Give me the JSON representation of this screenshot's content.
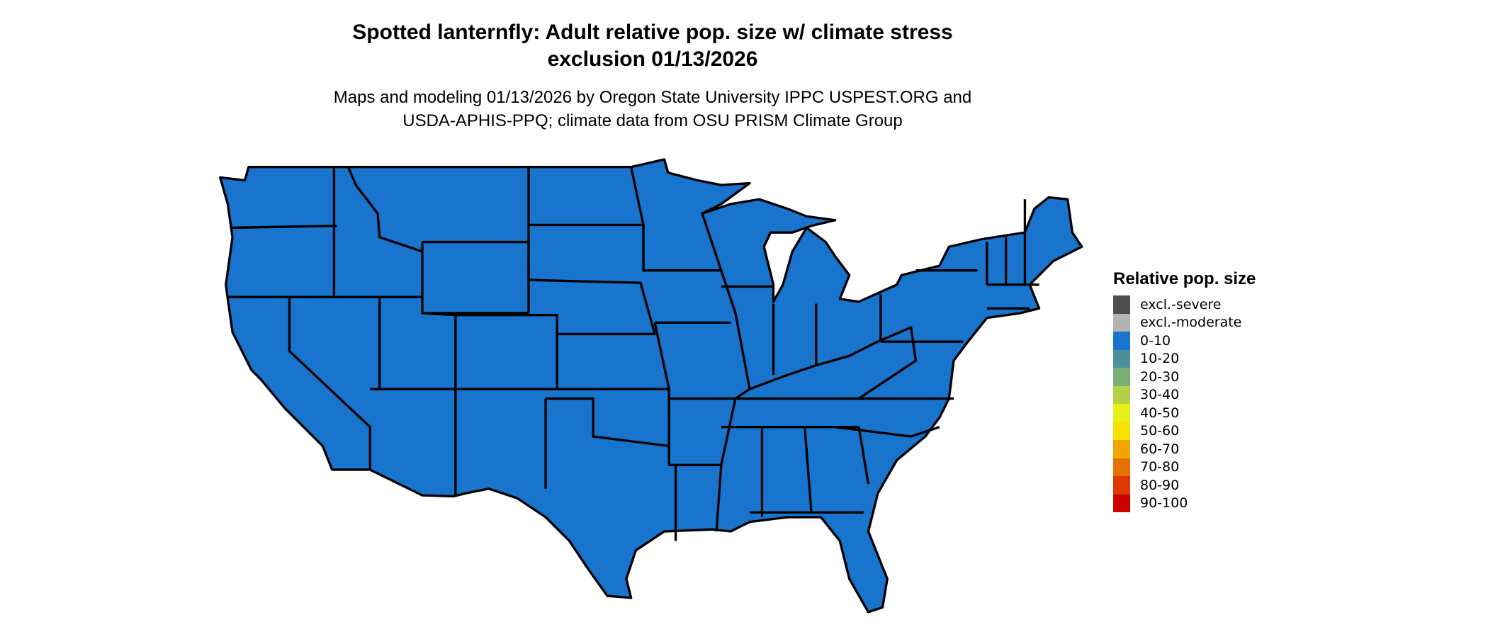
{
  "title_line1": "Spotted lanternfly: Adult relative pop. size w/ climate stress",
  "title_line2": "exclusion 01/13/2026",
  "subtitle_line1": "Maps and modeling 01/13/2026 by Oregon State University IPPC USPEST.ORG and",
  "subtitle_line2": "USDA-APHIS-PPQ; climate data from OSU PRISM Climate Group",
  "map": {
    "region": "Contiguous United States",
    "fill_class": "0-10",
    "fill_color": "#1874cd",
    "border_color": "#000000"
  },
  "legend": {
    "title": "Relative pop. size",
    "items": [
      {
        "label": "excl.-severe",
        "color": "#4d4d4d"
      },
      {
        "label": "excl.-moderate",
        "color": "#b3b3b3"
      },
      {
        "label": "0-10",
        "color": "#1874cd"
      },
      {
        "label": "10-20",
        "color": "#4a919b"
      },
      {
        "label": "20-30",
        "color": "#7bae74"
      },
      {
        "label": "30-40",
        "color": "#b3d046"
      },
      {
        "label": "40-50",
        "color": "#e5f015"
      },
      {
        "label": "50-60",
        "color": "#f8e000"
      },
      {
        "label": "60-70",
        "color": "#f0a800"
      },
      {
        "label": "70-80",
        "color": "#e57200"
      },
      {
        "label": "80-90",
        "color": "#dc3800"
      },
      {
        "label": "90-100",
        "color": "#cd0000"
      }
    ]
  }
}
